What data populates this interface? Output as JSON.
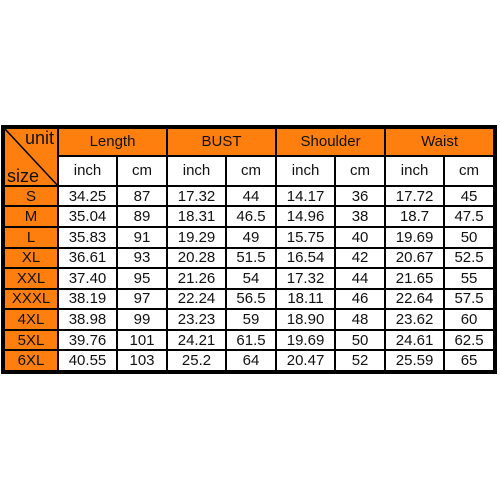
{
  "corner": {
    "unit_label": "unit",
    "size_label": "size"
  },
  "groups": [
    "Length",
    "BUST",
    "Shoulder",
    "Waist"
  ],
  "units": [
    "inch",
    "cm",
    "inch",
    "cm",
    "inch",
    "cm",
    "inch",
    "cm"
  ],
  "rows": [
    {
      "size": "S",
      "values": [
        "34.25",
        "87",
        "17.32",
        "44",
        "14.17",
        "36",
        "17.72",
        "45"
      ]
    },
    {
      "size": "M",
      "values": [
        "35.04",
        "89",
        "18.31",
        "46.5",
        "14.96",
        "38",
        "18.7",
        "47.5"
      ]
    },
    {
      "size": "L",
      "values": [
        "35.83",
        "91",
        "19.29",
        "49",
        "15.75",
        "40",
        "19.69",
        "50"
      ]
    },
    {
      "size": "XL",
      "values": [
        "36.61",
        "93",
        "20.28",
        "51.5",
        "16.54",
        "42",
        "20.67",
        "52.5"
      ]
    },
    {
      "size": "XXL",
      "values": [
        "37.40",
        "95",
        "21.26",
        "54",
        "17.32",
        "44",
        "21.65",
        "55"
      ]
    },
    {
      "size": "XXXL",
      "values": [
        "38.19",
        "97",
        "22.24",
        "56.5",
        "18.11",
        "46",
        "22.64",
        "57.5"
      ]
    },
    {
      "size": "4XL",
      "values": [
        "38.98",
        "99",
        "23.23",
        "59",
        "18.90",
        "48",
        "23.62",
        "60"
      ]
    },
    {
      "size": "5XL",
      "values": [
        "39.76",
        "101",
        "24.21",
        "61.5",
        "19.69",
        "50",
        "24.61",
        "62.5"
      ]
    },
    {
      "size": "6XL",
      "values": [
        "40.55",
        "103",
        "25.2",
        "64",
        "20.47",
        "52",
        "25.59",
        "65"
      ]
    }
  ],
  "colors": {
    "header_orange": "#ff7f0e",
    "border": "#000000",
    "cell_bg": "#ffffff"
  }
}
